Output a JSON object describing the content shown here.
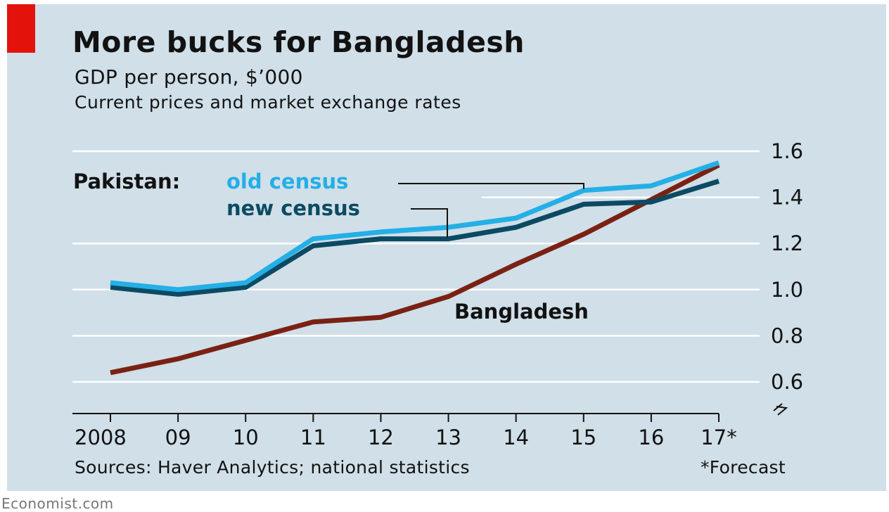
{
  "header": {
    "title": "More bucks for Bangladesh",
    "subtitle": "GDP per person, $’000",
    "subtitle2": "Current prices and market exchange rates"
  },
  "footer": {
    "sources": "Sources: Haver Analytics; national statistics",
    "forecast_note": "*Forecast",
    "brand": "Economist.com"
  },
  "colors": {
    "panel": "#d0dfe8",
    "accent": "#e3120b",
    "old_census": "#24afe6",
    "new_census": "#0c4a63",
    "bangladesh": "#7a2114"
  },
  "chart_data": {
    "type": "line",
    "x": [
      2008,
      2009,
      2010,
      2011,
      2012,
      2013,
      2014,
      2015,
      2016,
      2017
    ],
    "x_tick_labels": [
      "2008",
      "09",
      "10",
      "11",
      "12",
      "13",
      "14",
      "15",
      "16",
      "17*"
    ],
    "ylim": [
      0.6,
      1.6
    ],
    "y_ticks": [
      "0.6",
      "0.8",
      "1.0",
      "1.2",
      "1.4",
      "1.6"
    ],
    "y_axis_side": "right",
    "axis_break": true,
    "grid": "horizontal",
    "series": [
      {
        "name": "Pakistan: old census",
        "label_prefix": "Pakistan:",
        "label": "old census",
        "color": "#24afe6",
        "values": [
          1.03,
          1.0,
          1.03,
          1.22,
          1.25,
          1.27,
          1.31,
          1.43,
          1.45,
          1.55
        ]
      },
      {
        "name": "Pakistan: new census",
        "label": "new census",
        "color": "#0c4a63",
        "values": [
          1.01,
          0.98,
          1.01,
          1.19,
          1.22,
          1.22,
          1.27,
          1.37,
          1.38,
          1.47
        ]
      },
      {
        "name": "Bangladesh",
        "label": "Bangladesh",
        "color": "#7a2114",
        "values": [
          0.64,
          0.7,
          0.78,
          0.86,
          0.88,
          0.97,
          1.11,
          1.24,
          1.39,
          1.54
        ]
      }
    ]
  }
}
